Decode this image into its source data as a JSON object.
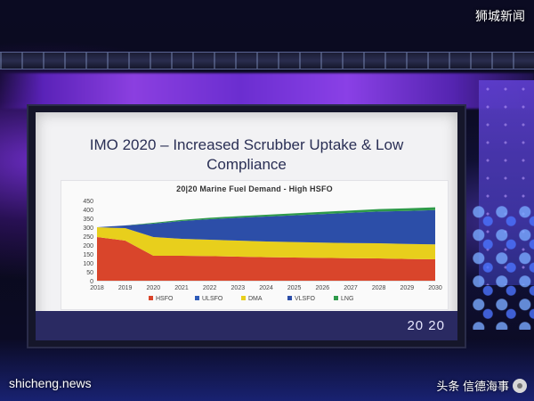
{
  "slide": {
    "title_line1": "IMO 2020 – Increased Scrubber Uptake & Low",
    "title_line2": "Compliance",
    "logo_text": "20 20"
  },
  "watermarks": {
    "top_right": "狮城新闻",
    "bottom_left": "shicheng.news",
    "bottom_right": "头条 信德海事",
    "bottom_right_sub": "shicheng.news"
  },
  "chart_data": {
    "type": "area",
    "title": "20|20 Marine Fuel Demand - High HSFO",
    "xlabel": "",
    "ylabel": "",
    "x": [
      2018,
      2019,
      2020,
      2021,
      2022,
      2023,
      2024,
      2025,
      2026,
      2027,
      2028,
      2029,
      2030
    ],
    "ylim": [
      0,
      450
    ],
    "yticks": [
      0,
      50,
      100,
      150,
      200,
      250,
      300,
      350,
      400,
      450
    ],
    "stacked": true,
    "legend_position": "bottom",
    "series": [
      {
        "name": "HSFO",
        "color": "#d9452b",
        "values": [
          245,
          225,
          140,
          140,
          138,
          135,
          132,
          130,
          128,
          126,
          125,
          122,
          120
        ]
      },
      {
        "name": "ULSFO",
        "color": "#2e5bb8",
        "values": [
          0,
          0,
          0,
          0,
          0,
          0,
          0,
          0,
          0,
          0,
          0,
          0,
          0
        ]
      },
      {
        "name": "DMA",
        "color": "#e8cf1c",
        "values": [
          55,
          70,
          105,
          95,
          92,
          90,
          88,
          87,
          86,
          85,
          85,
          84,
          84
        ]
      },
      {
        "name": "VLSFO",
        "color": "#2c4ea8",
        "values": [
          0,
          15,
          75,
          100,
          115,
          128,
          140,
          150,
          160,
          170,
          178,
          185,
          192
        ]
      },
      {
        "name": "LNG",
        "color": "#2e9a4a",
        "values": [
          0,
          0,
          5,
          6,
          8,
          9,
          10,
          11,
          12,
          13,
          14,
          15,
          16
        ]
      }
    ],
    "grid": false
  }
}
